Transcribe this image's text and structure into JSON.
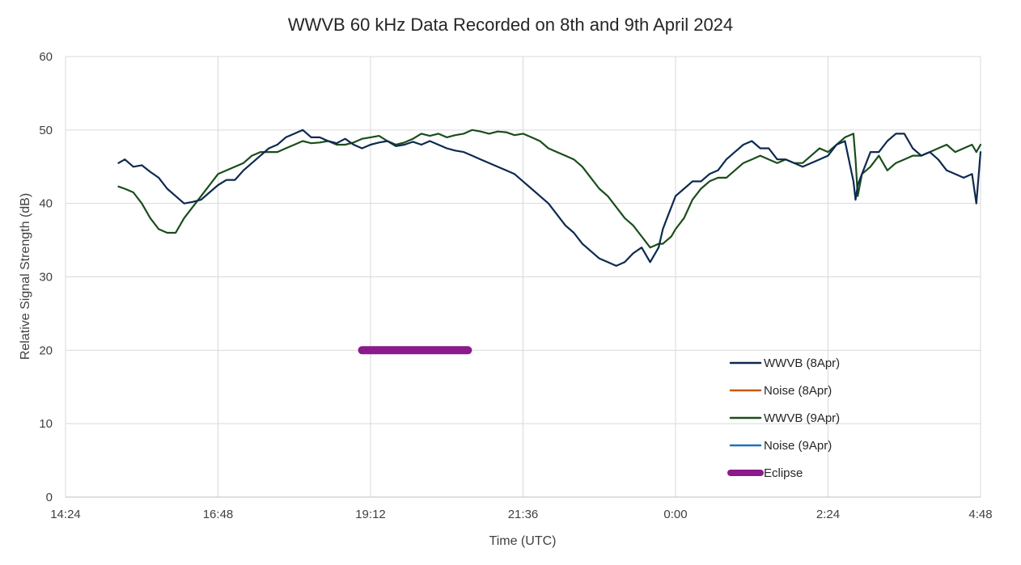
{
  "chart_data": {
    "type": "line",
    "title": "WWVB 60 kHz Data Recorded on 8th and 9th April 2024",
    "xlabel": "Time (UTC)",
    "ylabel": "Relative Signal Strength (dB)",
    "x_unit": "minutes after 14:24 UTC",
    "xlim": [
      0,
      864
    ],
    "ylim": [
      0,
      60
    ],
    "x_ticks": [
      {
        "value": 0,
        "label": "14:24"
      },
      {
        "value": 144,
        "label": "16:48"
      },
      {
        "value": 288,
        "label": "19:12"
      },
      {
        "value": 432,
        "label": "21:36"
      },
      {
        "value": 576,
        "label": "0:00"
      },
      {
        "value": 720,
        "label": "2:24"
      },
      {
        "value": 864,
        "label": "4:48"
      }
    ],
    "y_ticks": [
      {
        "value": 0,
        "label": "0"
      },
      {
        "value": 10,
        "label": "10"
      },
      {
        "value": 20,
        "label": "20"
      },
      {
        "value": 30,
        "label": "30"
      },
      {
        "value": 40,
        "label": "40"
      },
      {
        "value": 50,
        "label": "50"
      },
      {
        "value": 60,
        "label": "60"
      }
    ],
    "grid": true,
    "legend_position": "bottom-right",
    "series": [
      {
        "name": "WWVB (8Apr)",
        "color": "#0d2a4f",
        "width": 2.2,
        "x": [
          50,
          56,
          64,
          72,
          80,
          88,
          96,
          104,
          112,
          120,
          128,
          136,
          144,
          152,
          160,
          168,
          176,
          184,
          192,
          200,
          208,
          216,
          224,
          232,
          240,
          248,
          256,
          264,
          272,
          280,
          288,
          296,
          304,
          312,
          320,
          328,
          336,
          344,
          352,
          360,
          368,
          376,
          384,
          392,
          400,
          408,
          416,
          424,
          432,
          440,
          448,
          456,
          464,
          472,
          480,
          488,
          496,
          504,
          512,
          520,
          528,
          536,
          544,
          552,
          560,
          564,
          568,
          572,
          576,
          584,
          592,
          600,
          608,
          616,
          624,
          632,
          640,
          648,
          656,
          664,
          672,
          680,
          688,
          696,
          704,
          712,
          720,
          728,
          736,
          744,
          746,
          748,
          752,
          760,
          768,
          776,
          784,
          792,
          800,
          808,
          816,
          824,
          832,
          840,
          848,
          856,
          860,
          864
        ],
        "y": [
          45.5,
          46,
          45,
          45.2,
          44.3,
          43.5,
          42,
          41,
          40,
          40.2,
          40.5,
          41.5,
          42.5,
          43.2,
          43.2,
          44.5,
          45.5,
          46.5,
          47.5,
          48,
          49,
          49.5,
          50,
          49,
          49,
          48.5,
          48.2,
          48.8,
          48,
          47.5,
          48,
          48.3,
          48.5,
          47.8,
          48,
          48.4,
          48,
          48.5,
          48,
          47.5,
          47.2,
          47,
          46.5,
          46,
          45.5,
          45,
          44.5,
          44,
          43,
          42,
          41,
          40,
          38.5,
          37,
          36,
          34.5,
          33.5,
          32.5,
          32,
          31.5,
          32,
          33.2,
          34,
          32,
          34,
          36.5,
          38,
          39.5,
          41,
          42,
          43,
          43,
          44,
          44.5,
          46,
          47,
          48,
          48.5,
          47.5,
          47.5,
          46,
          46,
          45.5,
          45,
          45.5,
          46,
          46.5,
          48,
          48.5,
          43,
          40.5,
          42.5,
          44,
          47,
          47,
          48.5,
          49.5,
          49.5,
          47.5,
          46.5,
          47,
          46,
          44.5,
          44,
          43.5,
          44,
          40,
          47
        ]
      },
      {
        "name": "Noise (8Apr)",
        "color": "#c55a11",
        "width": 2,
        "x": [],
        "y": []
      },
      {
        "name": "WWVB (9Apr)",
        "color": "#1a4d1a",
        "width": 2.2,
        "x": [
          50,
          56,
          64,
          72,
          80,
          88,
          96,
          104,
          112,
          120,
          128,
          136,
          144,
          152,
          160,
          168,
          176,
          184,
          192,
          200,
          208,
          216,
          224,
          232,
          240,
          248,
          256,
          264,
          272,
          280,
          288,
          296,
          304,
          312,
          320,
          328,
          336,
          344,
          352,
          360,
          368,
          376,
          384,
          392,
          400,
          408,
          416,
          424,
          432,
          440,
          448,
          456,
          464,
          472,
          480,
          488,
          496,
          504,
          512,
          520,
          528,
          536,
          544,
          552,
          560,
          564,
          568,
          572,
          576,
          584,
          592,
          600,
          608,
          616,
          624,
          632,
          640,
          648,
          656,
          664,
          672,
          680,
          688,
          696,
          704,
          712,
          720,
          728,
          736,
          744,
          746,
          748,
          752,
          760,
          768,
          776,
          784,
          792,
          800,
          808,
          816,
          824,
          832,
          840,
          848,
          856,
          860,
          864
        ],
        "y": [
          42.3,
          42,
          41.5,
          40,
          38,
          36.5,
          36,
          36,
          38,
          39.5,
          41,
          42.5,
          44,
          44.5,
          45,
          45.5,
          46.5,
          47,
          47,
          47,
          47.5,
          48,
          48.5,
          48.2,
          48.3,
          48.5,
          48,
          48,
          48.3,
          48.8,
          49,
          49.2,
          48.5,
          48,
          48.3,
          48.8,
          49.5,
          49.2,
          49.5,
          49,
          49.3,
          49.5,
          50,
          49.8,
          49.5,
          49.8,
          49.7,
          49.3,
          49.5,
          49,
          48.5,
          47.5,
          47,
          46.5,
          46,
          45,
          43.5,
          42,
          41,
          39.5,
          38,
          37,
          35.5,
          34,
          34.5,
          34.5,
          35,
          35.5,
          36.5,
          38,
          40.5,
          42,
          43,
          43.5,
          43.5,
          44.5,
          45.5,
          46,
          46.5,
          46,
          45.5,
          46,
          45.5,
          45.5,
          46.5,
          47.5,
          47,
          48,
          49,
          49.5,
          46,
          41,
          44,
          45,
          46.5,
          44.5,
          45.5,
          46,
          46.5,
          46.5,
          47,
          47.5,
          48,
          47,
          47.5,
          48,
          47,
          48
        ]
      },
      {
        "name": "Noise (9Apr)",
        "color": "#1b75bc",
        "width": 2,
        "x": [],
        "y": []
      },
      {
        "name": "Eclipse",
        "color": "#8b1a8b",
        "width": 10,
        "x": [
          280,
          380
        ],
        "y": [
          20,
          20
        ]
      }
    ]
  }
}
